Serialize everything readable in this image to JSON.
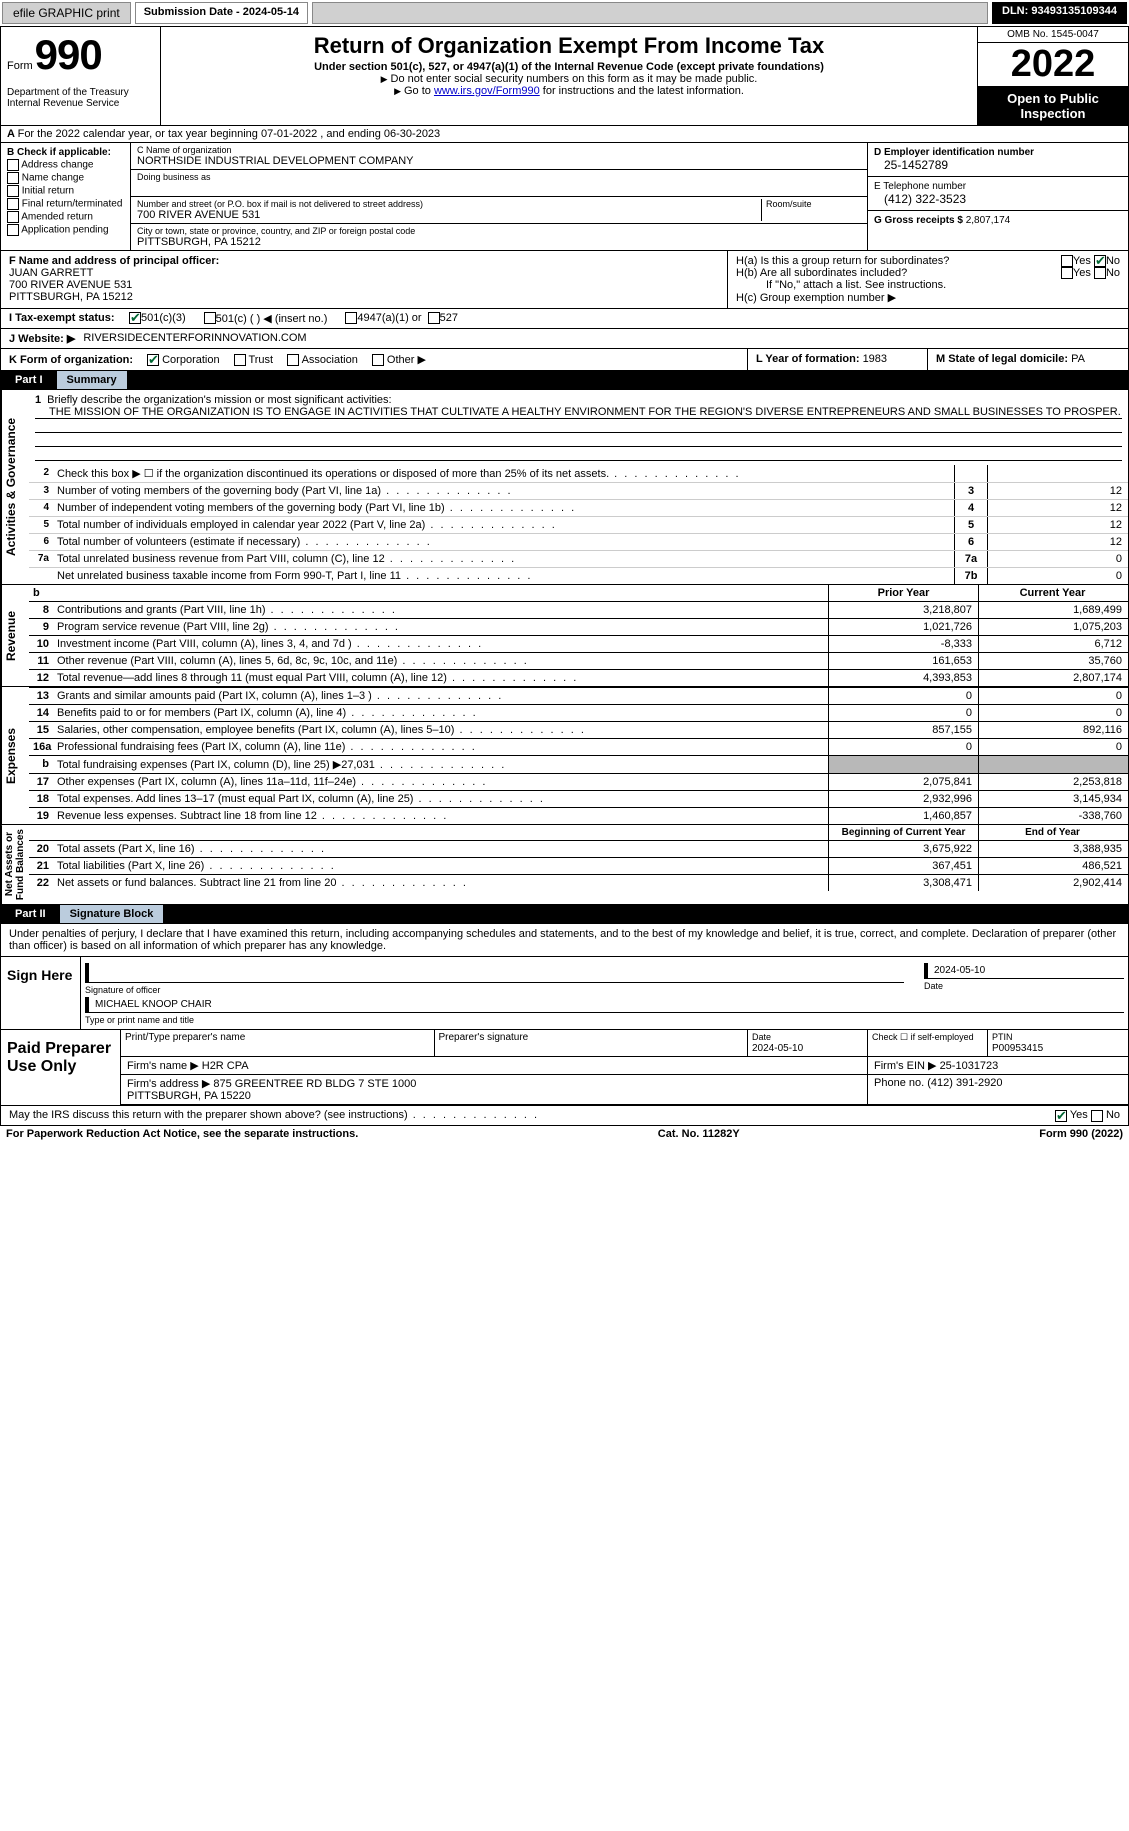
{
  "topbar": {
    "efile": "efile GRAPHIC print",
    "subdate_label": "Submission Date - 2024-05-14",
    "dln_label": "DLN: 93493135109344"
  },
  "header": {
    "form_word": "Form",
    "form_num": "990",
    "dept": "Department of the Treasury\nInternal Revenue Service",
    "title": "Return of Organization Exempt From Income Tax",
    "sub": "Under section 501(c), 527, or 4947(a)(1) of the Internal Revenue Code (except private foundations)",
    "note1": "Do not enter social security numbers on this form as it may be made public.",
    "note2_pre": "Go to ",
    "note2_link": "www.irs.gov/Form990",
    "note2_post": " for instructions and the latest information.",
    "omb": "OMB No. 1545-0047",
    "year": "2022",
    "inspect": "Open to Public Inspection"
  },
  "lineA": "For the 2022 calendar year, or tax year beginning 07-01-2022    , and ending 06-30-2023",
  "boxB": {
    "title": "B Check if applicable:",
    "opts": [
      "Address change",
      "Name change",
      "Initial return",
      "Final return/terminated",
      "Amended return",
      "Application pending"
    ]
  },
  "boxC": {
    "name_lbl": "C Name of organization",
    "name": "NORTHSIDE INDUSTRIAL DEVELOPMENT COMPANY",
    "dba_lbl": "Doing business as",
    "addr_lbl": "Number and street (or P.O. box if mail is not delivered to street address)",
    "room_lbl": "Room/suite",
    "addr": "700 RIVER AVENUE 531",
    "city_lbl": "City or town, state or province, country, and ZIP or foreign postal code",
    "city": "PITTSBURGH, PA  15212"
  },
  "boxD": {
    "ein_lbl": "D Employer identification number",
    "ein": "25-1452789",
    "phone_lbl": "E Telephone number",
    "phone": "(412) 322-3523",
    "gross_lbl": "G Gross receipts $ ",
    "gross": "2,807,174"
  },
  "boxF": {
    "lbl": "F Name and address of principal officer:",
    "name": "JUAN GARRETT",
    "addr1": "700 RIVER AVENUE 531",
    "addr2": "PITTSBURGH, PA  15212"
  },
  "boxH": {
    "a": "H(a)  Is this a group return for subordinates?",
    "b": "H(b)  Are all subordinates included?",
    "bnote": "If \"No,\" attach a list. See instructions.",
    "c": "H(c)  Group exemption number ▶",
    "yes": "Yes",
    "no": "No"
  },
  "lineI": {
    "lbl": "I    Tax-exempt status:",
    "o1": "501(c)(3)",
    "o2": "501(c) (  ) ◀ (insert no.)",
    "o3": "4947(a)(1) or",
    "o4": "527"
  },
  "lineJ": {
    "lbl": "J   Website: ▶",
    "val": "RIVERSIDECENTERFORINNOVATION.COM"
  },
  "lineK": {
    "lbl": "K Form of organization:",
    "o1": "Corporation",
    "o2": "Trust",
    "o3": "Association",
    "o4": "Other ▶"
  },
  "lineL": {
    "lbl": "L Year of formation: ",
    "val": "1983"
  },
  "lineM": {
    "lbl": "M State of legal domicile: ",
    "val": "PA"
  },
  "part1": {
    "num": "Part I",
    "title": "Summary"
  },
  "mission": {
    "n": "1",
    "lbl": "Briefly describe the organization's mission or most significant activities:",
    "text": "THE MISSION OF THE ORGANIZATION IS TO ENGAGE IN ACTIVITIES THAT CULTIVATE A HEALTHY ENVIRONMENT FOR THE REGION'S DIVERSE ENTREPRENEURS AND SMALL BUSINESSES TO PROSPER."
  },
  "govlines": [
    {
      "n": "2",
      "t": "Check this box ▶ ☐ if the organization discontinued its operations or disposed of more than 25% of its net assets.",
      "bn": "",
      "bv": ""
    },
    {
      "n": "3",
      "t": "Number of voting members of the governing body (Part VI, line 1a)",
      "bn": "3",
      "bv": "12"
    },
    {
      "n": "4",
      "t": "Number of independent voting members of the governing body (Part VI, line 1b)",
      "bn": "4",
      "bv": "12"
    },
    {
      "n": "5",
      "t": "Total number of individuals employed in calendar year 2022 (Part V, line 2a)",
      "bn": "5",
      "bv": "12"
    },
    {
      "n": "6",
      "t": "Total number of volunteers (estimate if necessary)",
      "bn": "6",
      "bv": "12"
    },
    {
      "n": "7a",
      "t": "Total unrelated business revenue from Part VIII, column (C), line 12",
      "bn": "7a",
      "bv": "0"
    },
    {
      "n": "",
      "t": "Net unrelated business taxable income from Form 990-T, Part I, line 11",
      "bn": "7b",
      "bv": "0"
    }
  ],
  "colhdr": {
    "n": "b",
    "t": "",
    "prior": "Prior Year",
    "curr": "Current Year"
  },
  "revenue_label": "Revenue",
  "revenue": [
    {
      "n": "8",
      "t": "Contributions and grants (Part VIII, line 1h)",
      "p": "3,218,807",
      "c": "1,689,499"
    },
    {
      "n": "9",
      "t": "Program service revenue (Part VIII, line 2g)",
      "p": "1,021,726",
      "c": "1,075,203"
    },
    {
      "n": "10",
      "t": "Investment income (Part VIII, column (A), lines 3, 4, and 7d )",
      "p": "-8,333",
      "c": "6,712"
    },
    {
      "n": "11",
      "t": "Other revenue (Part VIII, column (A), lines 5, 6d, 8c, 9c, 10c, and 11e)",
      "p": "161,653",
      "c": "35,760"
    },
    {
      "n": "12",
      "t": "Total revenue—add lines 8 through 11 (must equal Part VIII, column (A), line 12)",
      "p": "4,393,853",
      "c": "2,807,174"
    }
  ],
  "expenses_label": "Expenses",
  "expenses": [
    {
      "n": "13",
      "t": "Grants and similar amounts paid (Part IX, column (A), lines 1–3 )",
      "p": "0",
      "c": "0"
    },
    {
      "n": "14",
      "t": "Benefits paid to or for members (Part IX, column (A), line 4)",
      "p": "0",
      "c": "0"
    },
    {
      "n": "15",
      "t": "Salaries, other compensation, employee benefits (Part IX, column (A), lines 5–10)",
      "p": "857,155",
      "c": "892,116"
    },
    {
      "n": "16a",
      "t": "Professional fundraising fees (Part IX, column (A), line 11e)",
      "p": "0",
      "c": "0"
    },
    {
      "n": "b",
      "t": "Total fundraising expenses (Part IX, column (D), line 25) ▶27,031",
      "p": "",
      "c": "",
      "shaded": true
    },
    {
      "n": "17",
      "t": "Other expenses (Part IX, column (A), lines 11a–11d, 11f–24e)",
      "p": "2,075,841",
      "c": "2,253,818"
    },
    {
      "n": "18",
      "t": "Total expenses. Add lines 13–17 (must equal Part IX, column (A), line 25)",
      "p": "2,932,996",
      "c": "3,145,934"
    },
    {
      "n": "19",
      "t": "Revenue less expenses. Subtract line 18 from line 12",
      "p": "1,460,857",
      "c": "-338,760"
    }
  ],
  "net_label": "Net Assets or\nFund Balances",
  "nethdr": {
    "p": "Beginning of Current Year",
    "c": "End of Year"
  },
  "net": [
    {
      "n": "20",
      "t": "Total assets (Part X, line 16)",
      "p": "3,675,922",
      "c": "3,388,935"
    },
    {
      "n": "21",
      "t": "Total liabilities (Part X, line 26)",
      "p": "367,451",
      "c": "486,521"
    },
    {
      "n": "22",
      "t": "Net assets or fund balances. Subtract line 21 from line 20",
      "p": "3,308,471",
      "c": "2,902,414"
    }
  ],
  "part2": {
    "num": "Part II",
    "title": "Signature Block"
  },
  "sigdecl": "Under penalties of perjury, I declare that I have examined this return, including accompanying schedules and statements, and to the best of my knowledge and belief, it is true, correct, and complete. Declaration of preparer (other than officer) is based on all information of which preparer has any knowledge.",
  "sign": {
    "lab": "Sign Here",
    "sig_lbl": "Signature of officer",
    "date": "2024-05-10",
    "name": "MICHAEL KNOOP CHAIR",
    "name_lbl": "Type or print name and title"
  },
  "prep": {
    "lab": "Paid Preparer Use Only",
    "h1": "Print/Type preparer's name",
    "h2": "Preparer's signature",
    "h3": "Date",
    "h3v": "2024-05-10",
    "h4": "Check ☐ if self-employed",
    "h5": "PTIN",
    "h5v": "P00953415",
    "firm_lbl": "Firm's name     ▶",
    "firm": "H2R CPA",
    "ein_lbl": "Firm's EIN ▶",
    "ein": "25-1031723",
    "addr_lbl": "Firm's address ▶",
    "addr": "875 GREENTREE RD BLDG 7 STE 1000\nPITTSBURGH, PA  15220",
    "phone_lbl": "Phone no. ",
    "phone": "(412) 391-2920"
  },
  "may": {
    "t": "May the IRS discuss this return with the preparer shown above? (see instructions)",
    "yes": "Yes",
    "no": "No"
  },
  "footer": {
    "left": "For Paperwork Reduction Act Notice, see the separate instructions.",
    "mid": "Cat. No. 11282Y",
    "right": "Form 990 (2022)"
  },
  "gov_label": "Activities & Governance",
  "colors": {
    "partbg": "#000000",
    "parttitlebg": "#bcd5e6",
    "shaded": "#b8b8b8",
    "link": "#0000cc"
  }
}
